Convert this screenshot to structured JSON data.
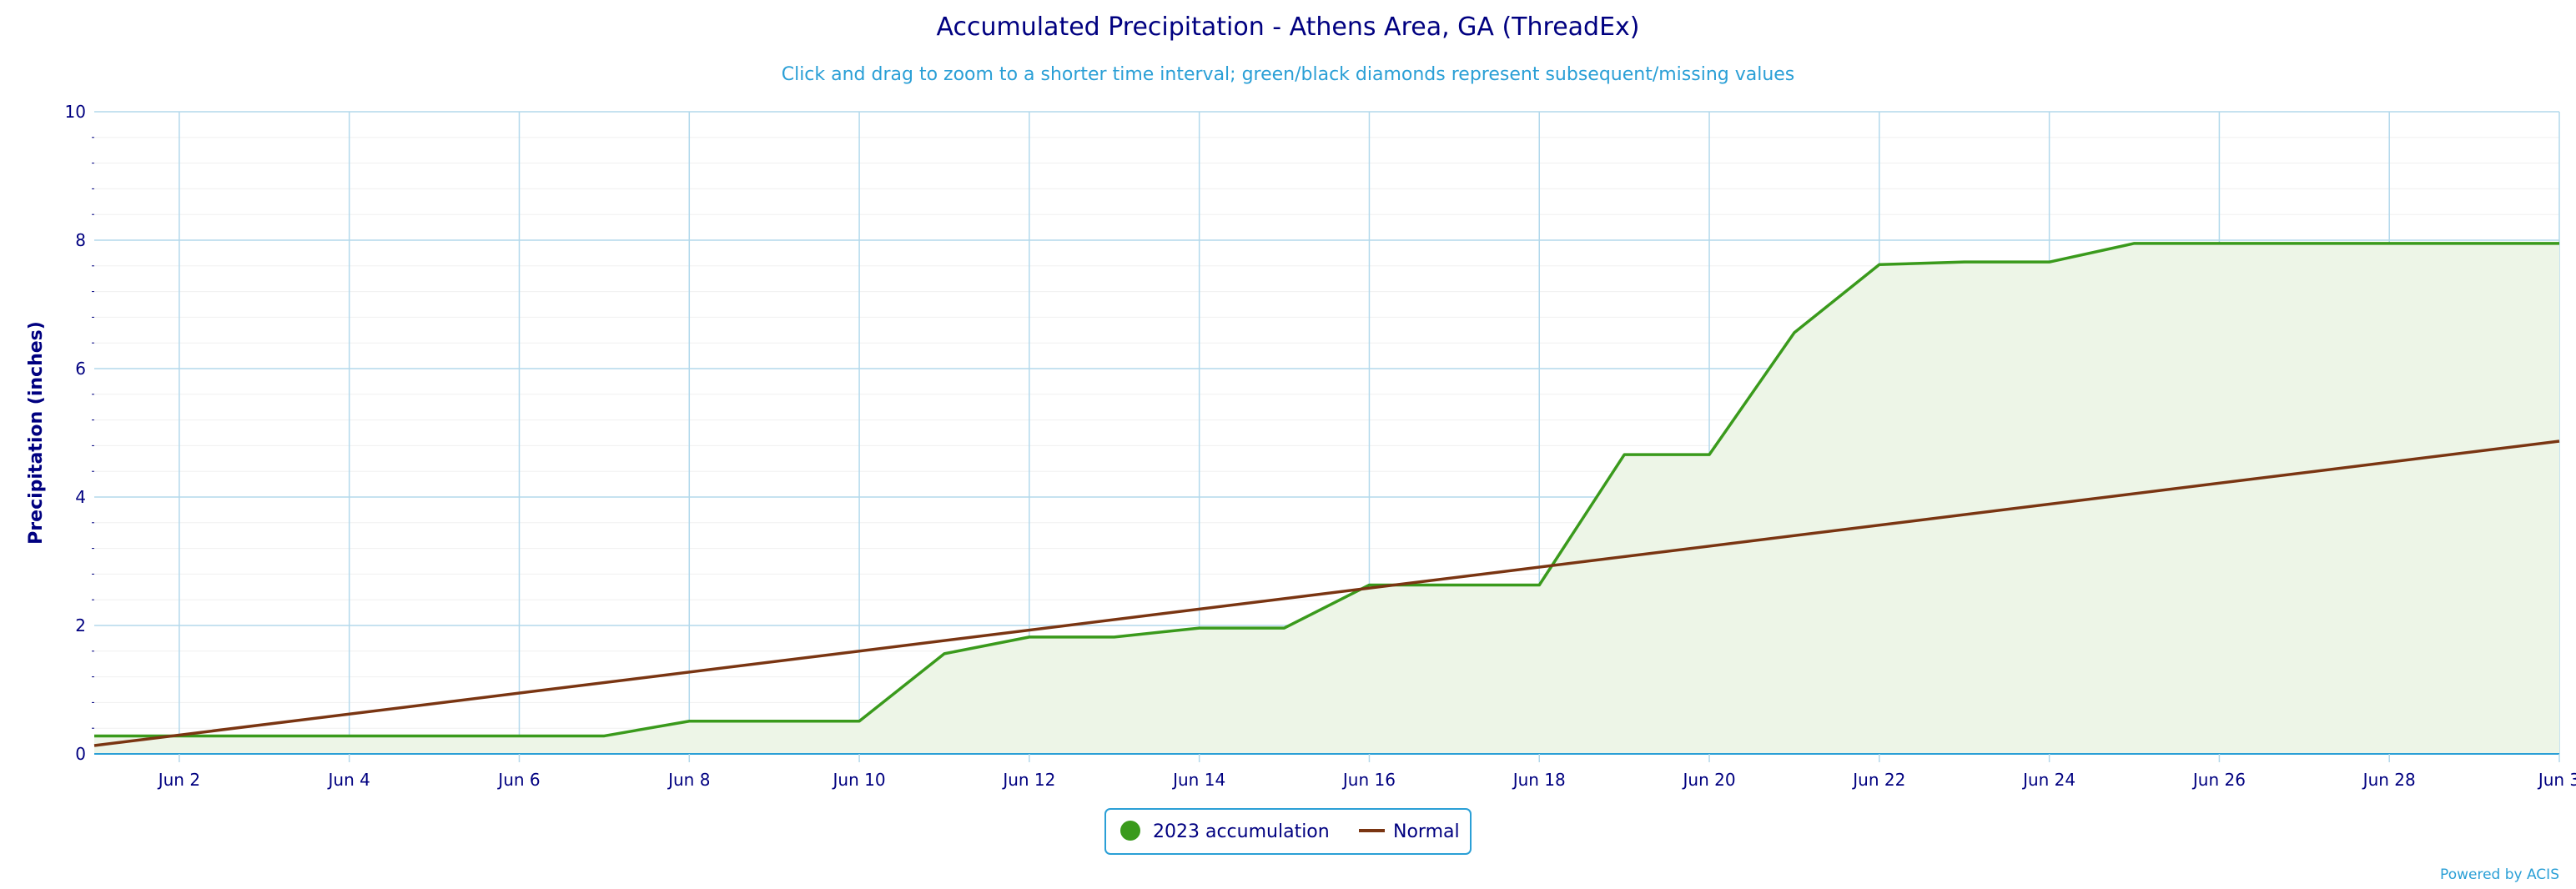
{
  "colors": {
    "accumulation": "#3a9a1c",
    "accumulation_fill": "#edf5e7",
    "normal": "#7a3512",
    "grid": "#b3d9ec",
    "title": "#000080",
    "subtitle": "#2a9fd6"
  },
  "chart_data": {
    "type": "area",
    "title": "Accumulated Precipitation - Athens Area, GA (ThreadEx)",
    "subtitle": "Click and drag to zoom to a shorter time interval; green/black diamonds represent subsequent/missing values",
    "xlabel": "",
    "ylabel": "Precipitation (inches)",
    "ylim": [
      0,
      10
    ],
    "y_ticks": [
      "0",
      "2",
      "4",
      "6",
      "8",
      "10"
    ],
    "x_tick_labels": [
      "Jun 2",
      "Jun 4",
      "Jun 6",
      "Jun 8",
      "Jun 10",
      "Jun 12",
      "Jun 14",
      "Jun 16",
      "Jun 18",
      "Jun 20",
      "Jun 22",
      "Jun 24",
      "Jun 26",
      "Jun 28",
      "Jun 3"
    ],
    "x_tick_days": [
      2,
      4,
      6,
      8,
      10,
      12,
      14,
      16,
      18,
      20,
      22,
      24,
      26,
      28,
      30
    ],
    "xlim_days": [
      1,
      30
    ],
    "grid": true,
    "legend_position": "bottom-center",
    "series": [
      {
        "name": "2023 accumulation",
        "type": "area",
        "x_days": [
          1,
          2,
          3,
          4,
          5,
          6,
          7,
          8,
          9,
          10,
          11,
          12,
          13,
          14,
          15,
          16,
          17,
          18,
          19,
          20,
          21,
          22,
          23,
          24,
          25,
          26,
          27,
          28,
          29,
          30
        ],
        "values": [
          0.28,
          0.28,
          0.28,
          0.28,
          0.28,
          0.28,
          0.28,
          0.51,
          0.51,
          0.51,
          1.56,
          1.82,
          1.82,
          1.96,
          1.96,
          2.63,
          2.63,
          2.63,
          4.66,
          4.66,
          6.56,
          7.62,
          7.66,
          7.66,
          7.95,
          7.95,
          7.95,
          7.95,
          7.95,
          7.95
        ]
      },
      {
        "name": "Normal",
        "type": "line",
        "x_days": [
          1,
          30
        ],
        "values": [
          0.13,
          4.87
        ]
      }
    ]
  },
  "legend": {
    "accumulation_label": "2023 accumulation",
    "normal_label": "Normal"
  },
  "credit": "Powered by ACIS"
}
